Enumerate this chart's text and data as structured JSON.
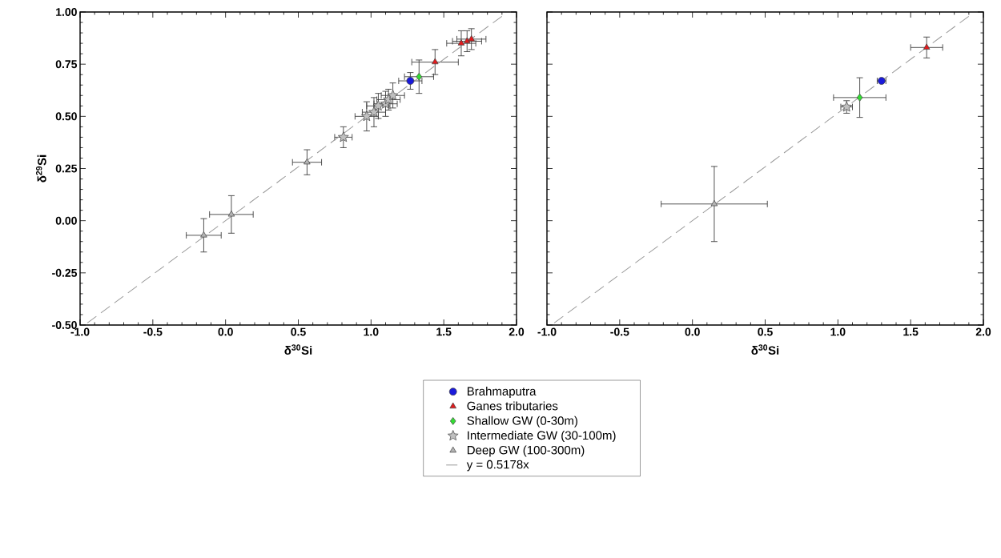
{
  "chart_data": [
    {
      "type": "scatter",
      "xlabel": "δ$^{30}$Si",
      "ylabel": "δ$^{29}$Si",
      "xlim": [
        -1.0,
        2.0
      ],
      "ylim": [
        -0.5,
        1.0
      ],
      "xticks": [
        {
          "value": -1.0,
          "label": "-1.0"
        },
        {
          "value": -0.5,
          "label": "-0.5"
        },
        {
          "value": 0.0,
          "label": "0.0"
        },
        {
          "value": 0.5,
          "label": "0.5"
        },
        {
          "value": 1.0,
          "label": "1.0"
        },
        {
          "value": 1.5,
          "label": "1.5"
        },
        {
          "value": 2.0,
          "label": "2.0"
        }
      ],
      "yticks": [
        {
          "value": -0.5,
          "label": "-0.50"
        },
        {
          "value": -0.25,
          "label": "-0.25"
        },
        {
          "value": 0.0,
          "label": "0.00"
        },
        {
          "value": 0.25,
          "label": "0.25"
        },
        {
          "value": 0.5,
          "label": "0.50"
        },
        {
          "value": 0.75,
          "label": "0.75"
        },
        {
          "value": 1.0,
          "label": "1.00"
        }
      ],
      "legend": "bottom",
      "series": [
        {
          "name": "Brahmaputra",
          "color": "#1a1adb",
          "marker": "circle",
          "x": [
            1.27
          ],
          "values": [
            0.67
          ],
          "xerrors": [
            0.08
          ],
          "errors": [
            0.04
          ]
        },
        {
          "name": "Ganes tributaries",
          "color": "#e31a1c",
          "marker": "triangle",
          "x": [
            1.44,
            1.62,
            1.66,
            1.69
          ],
          "values": [
            0.76,
            0.85,
            0.86,
            0.87
          ],
          "xerrors": [
            0.16,
            0.1,
            0.1,
            0.1
          ],
          "errors": [
            0.06,
            0.06,
            0.05,
            0.05
          ]
        },
        {
          "name": "Shallow GW (0-30m)",
          "color": "#33dd33",
          "marker": "diamond",
          "x": [
            1.33
          ],
          "values": [
            0.69
          ],
          "xerrors": [
            0.1
          ],
          "errors": [
            0.08
          ]
        },
        {
          "name": "Intermediate GW (30-100m)",
          "color": "#c0c0c0",
          "marker": "star",
          "x": [
            0.81,
            0.97,
            1.02,
            1.05,
            1.1,
            1.12,
            1.15
          ],
          "values": [
            0.4,
            0.5,
            0.52,
            0.55,
            0.56,
            0.58,
            0.6
          ],
          "xerrors": [
            0.06,
            0.08,
            0.08,
            0.08,
            0.08,
            0.08,
            0.08
          ],
          "errors": [
            0.05,
            0.07,
            0.07,
            0.06,
            0.06,
            0.05,
            0.06
          ]
        },
        {
          "name": "Deep GW (100-300m)",
          "color": "#b4b4b4",
          "marker": "triangle",
          "x": [
            -0.15,
            0.04,
            0.56
          ],
          "values": [
            -0.07,
            0.03,
            0.28
          ],
          "xerrors": [
            0.12,
            0.15,
            0.1
          ],
          "errors": [
            0.08,
            0.09,
            0.06
          ]
        },
        {
          "name": "y = 0.5178x",
          "type": "line",
          "color": "#999999",
          "line_style": "dashed",
          "marker": "none",
          "x": [
            -0.95,
            1.9
          ],
          "values": [
            -0.49,
            0.98
          ]
        }
      ]
    },
    {
      "type": "scatter",
      "xlabel": "δ$^{30}$Si",
      "xlim": [
        -1.0,
        2.0
      ],
      "ylim": [
        -0.5,
        1.0
      ],
      "tick_labels": "x",
      "xticks": [
        {
          "value": -1.0,
          "label": "-1.0"
        },
        {
          "value": -0.5,
          "label": "-0.5"
        },
        {
          "value": 0.0,
          "label": "0.0"
        },
        {
          "value": 0.5,
          "label": "0.5"
        },
        {
          "value": 1.0,
          "label": "1.0"
        },
        {
          "value": 1.5,
          "label": "1.5"
        },
        {
          "value": 2.0,
          "label": "2.0"
        }
      ],
      "yticks": [
        {
          "value": -0.5,
          "label": null
        },
        {
          "value": -0.25,
          "label": null
        },
        {
          "value": 0.0,
          "label": null
        },
        {
          "value": 0.25,
          "label": null
        },
        {
          "value": 0.5,
          "label": null
        },
        {
          "value": 0.75,
          "label": null
        },
        {
          "value": 1.0,
          "label": null
        }
      ],
      "series": [
        {
          "color": "#1a1adb",
          "marker": "circle",
          "x": [
            1.3
          ],
          "values": [
            0.67
          ],
          "xerrors": [
            0.03
          ]
        },
        {
          "color": "#e31a1c",
          "marker": "triangle",
          "x": [
            1.61
          ],
          "values": [
            0.83
          ],
          "xerrors": [
            0.11
          ],
          "errors": [
            0.05
          ]
        },
        {
          "color": "#33dd33",
          "marker": "diamond",
          "x": [
            1.15
          ],
          "values": [
            0.59
          ],
          "xerrors": [
            0.18
          ],
          "errors": [
            0.095
          ]
        },
        {
          "color": "#c0c0c0",
          "marker": "star",
          "x": [
            1.06
          ],
          "values": [
            0.545
          ],
          "xerrors": [
            0.04
          ],
          "errors": [
            0.03
          ]
        },
        {
          "color": "#b4b4b4",
          "marker": "triangle",
          "x": [
            0.15
          ],
          "values": [
            0.08
          ],
          "xerrors": [
            0.365
          ],
          "errors": [
            0.18
          ]
        },
        {
          "type": "line",
          "color": "#999999",
          "line_style": "dashed",
          "marker": "none",
          "x": [
            -0.95,
            1.9
          ],
          "values": [
            -0.49,
            0.98
          ]
        }
      ]
    }
  ]
}
